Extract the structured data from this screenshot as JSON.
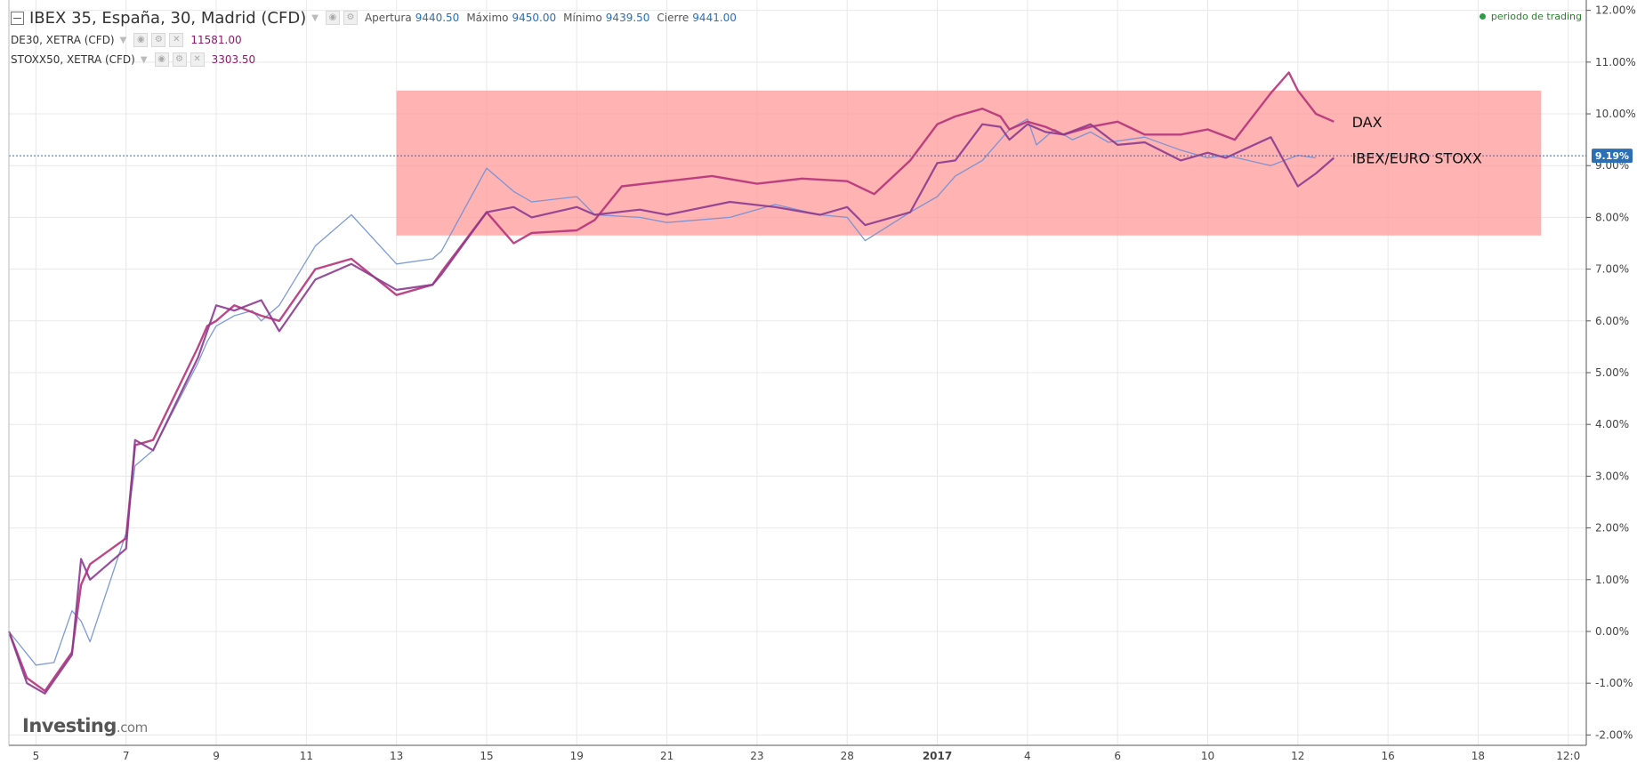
{
  "legend": {
    "main": {
      "name": "IBEX 35, España, 30, Madrid (CFD)",
      "open_label": "Apertura",
      "open": "9440.50",
      "high_label": "Máximo",
      "high": "9450.00",
      "low_label": "Mínimo",
      "low": "9439.50",
      "close_label": "Cierre",
      "close": "9441.00"
    },
    "dax": {
      "name": "DE30, XETRA (CFD)",
      "value": "11581.00"
    },
    "stoxx": {
      "name": "STOXX50, XETRA (CFD)",
      "value": "3303.50"
    }
  },
  "trading_status": "periodo de trading",
  "logo": {
    "brand": "Investing",
    "suffix": ".com"
  },
  "colors": {
    "ibex": "#6f8fd6",
    "dax": "#b5337a",
    "stoxx": "#8b3a8f",
    "highlight": "#ff9a9a",
    "price_tag": "#2c6fb5",
    "grid": "#e8e8e8"
  },
  "chart_data": {
    "type": "line",
    "ylim": [
      -2.2,
      12.2
    ],
    "y_ticks": [
      -2,
      -1,
      0,
      1,
      2,
      3,
      4,
      5,
      6,
      7,
      8,
      9,
      10,
      11,
      12
    ],
    "y_tick_labels": [
      "-2.00%",
      "-1.00%",
      "0.00%",
      "1.00%",
      "2.00%",
      "3.00%",
      "4.00%",
      "5.00%",
      "6.00%",
      "7.00%",
      "8.00%",
      "9.00%",
      "10.00%",
      "11.00%",
      "12.00%"
    ],
    "x_ticks": [
      "5",
      "7",
      "9",
      "11",
      "13",
      "15",
      "19",
      "21",
      "23",
      "28",
      "2017",
      "4",
      "6",
      "10",
      "12",
      "16",
      "18",
      "12:0"
    ],
    "x_tick_index": [
      3,
      13,
      23,
      33,
      43,
      53,
      63,
      73,
      83,
      93,
      103,
      113,
      123,
      133,
      143,
      153,
      163,
      173
    ],
    "x_tick_bold": [
      "2017"
    ],
    "grid": true,
    "current_value": 9.19,
    "current_label": "9.19%",
    "highlight": {
      "x_from": 43,
      "x_to": 170,
      "y_from": 7.65,
      "y_to": 10.45
    },
    "annotations": [
      {
        "text": "DAX",
        "x": 149,
        "y": 9.85
      },
      {
        "text": "IBEX/EURO STOXX",
        "x": 149,
        "y": 9.15
      }
    ],
    "series": [
      {
        "key": "ibex",
        "x": [
          0,
          3,
          5,
          7,
          8,
          9,
          13,
          14,
          16,
          21,
          22,
          23,
          25,
          27,
          28,
          30,
          34,
          38,
          43,
          47,
          48,
          53,
          56,
          58,
          63,
          65,
          70,
          73,
          80,
          85,
          90,
          93,
          95,
          100,
          103,
          105,
          108,
          110,
          111,
          113,
          114,
          116,
          118,
          120,
          122,
          126,
          130,
          133,
          135,
          140,
          143,
          145
        ],
        "y": [
          0,
          -0.65,
          -0.6,
          0.4,
          0.2,
          -0.2,
          1.9,
          3.2,
          3.5,
          5.2,
          5.6,
          5.9,
          6.1,
          6.2,
          6.0,
          6.3,
          7.45,
          8.05,
          7.1,
          7.2,
          7.35,
          8.95,
          8.5,
          8.3,
          8.4,
          8.05,
          8.0,
          7.9,
          8.0,
          8.25,
          8.05,
          8.0,
          7.55,
          8.1,
          8.4,
          8.8,
          9.1,
          9.5,
          9.7,
          9.9,
          9.4,
          9.7,
          9.5,
          9.65,
          9.45,
          9.55,
          9.3,
          9.15,
          9.2,
          9.0,
          9.2,
          9.15
        ]
      },
      {
        "key": "dax",
        "x": [
          0,
          2,
          4,
          7,
          8,
          9,
          13,
          14,
          16,
          21,
          22,
          23,
          25,
          28,
          30,
          34,
          38,
          43,
          47,
          48,
          53,
          56,
          58,
          63,
          65,
          68,
          73,
          78,
          83,
          88,
          93,
          96,
          100,
          103,
          105,
          108,
          110,
          111,
          113,
          115,
          117,
          120,
          123,
          126,
          130,
          133,
          136,
          140,
          142,
          143,
          145,
          147
        ],
        "y": [
          0,
          -0.9,
          -1.15,
          -0.4,
          0.9,
          1.3,
          1.8,
          3.6,
          3.7,
          5.5,
          5.9,
          6.0,
          6.3,
          6.1,
          6.0,
          7.0,
          7.2,
          6.5,
          6.7,
          6.95,
          8.1,
          7.5,
          7.7,
          7.75,
          7.95,
          8.6,
          8.7,
          8.8,
          8.65,
          8.75,
          8.7,
          8.45,
          9.1,
          9.8,
          9.95,
          10.1,
          9.95,
          9.7,
          9.85,
          9.75,
          9.6,
          9.75,
          9.85,
          9.6,
          9.6,
          9.7,
          9.5,
          10.4,
          10.8,
          10.45,
          10.0,
          9.85
        ]
      },
      {
        "key": "stoxx",
        "x": [
          0,
          2,
          4,
          7,
          8,
          9,
          13,
          14,
          16,
          21,
          22,
          23,
          25,
          28,
          30,
          34,
          38,
          43,
          47,
          48,
          53,
          56,
          58,
          63,
          65,
          70,
          73,
          80,
          85,
          90,
          93,
          95,
          100,
          103,
          105,
          108,
          110,
          111,
          113,
          115,
          117,
          120,
          123,
          126,
          130,
          133,
          135,
          140,
          143,
          145,
          147
        ],
        "y": [
          0,
          -1.0,
          -1.2,
          -0.45,
          1.4,
          1.0,
          1.6,
          3.7,
          3.5,
          5.3,
          5.8,
          6.3,
          6.2,
          6.4,
          5.8,
          6.8,
          7.1,
          6.6,
          6.7,
          6.9,
          8.1,
          8.2,
          8.0,
          8.2,
          8.05,
          8.15,
          8.05,
          8.3,
          8.2,
          8.05,
          8.2,
          7.85,
          8.1,
          9.05,
          9.1,
          9.8,
          9.75,
          9.5,
          9.8,
          9.65,
          9.6,
          9.8,
          9.4,
          9.45,
          9.1,
          9.25,
          9.15,
          9.55,
          8.6,
          8.85,
          9.15
        ]
      }
    ]
  }
}
